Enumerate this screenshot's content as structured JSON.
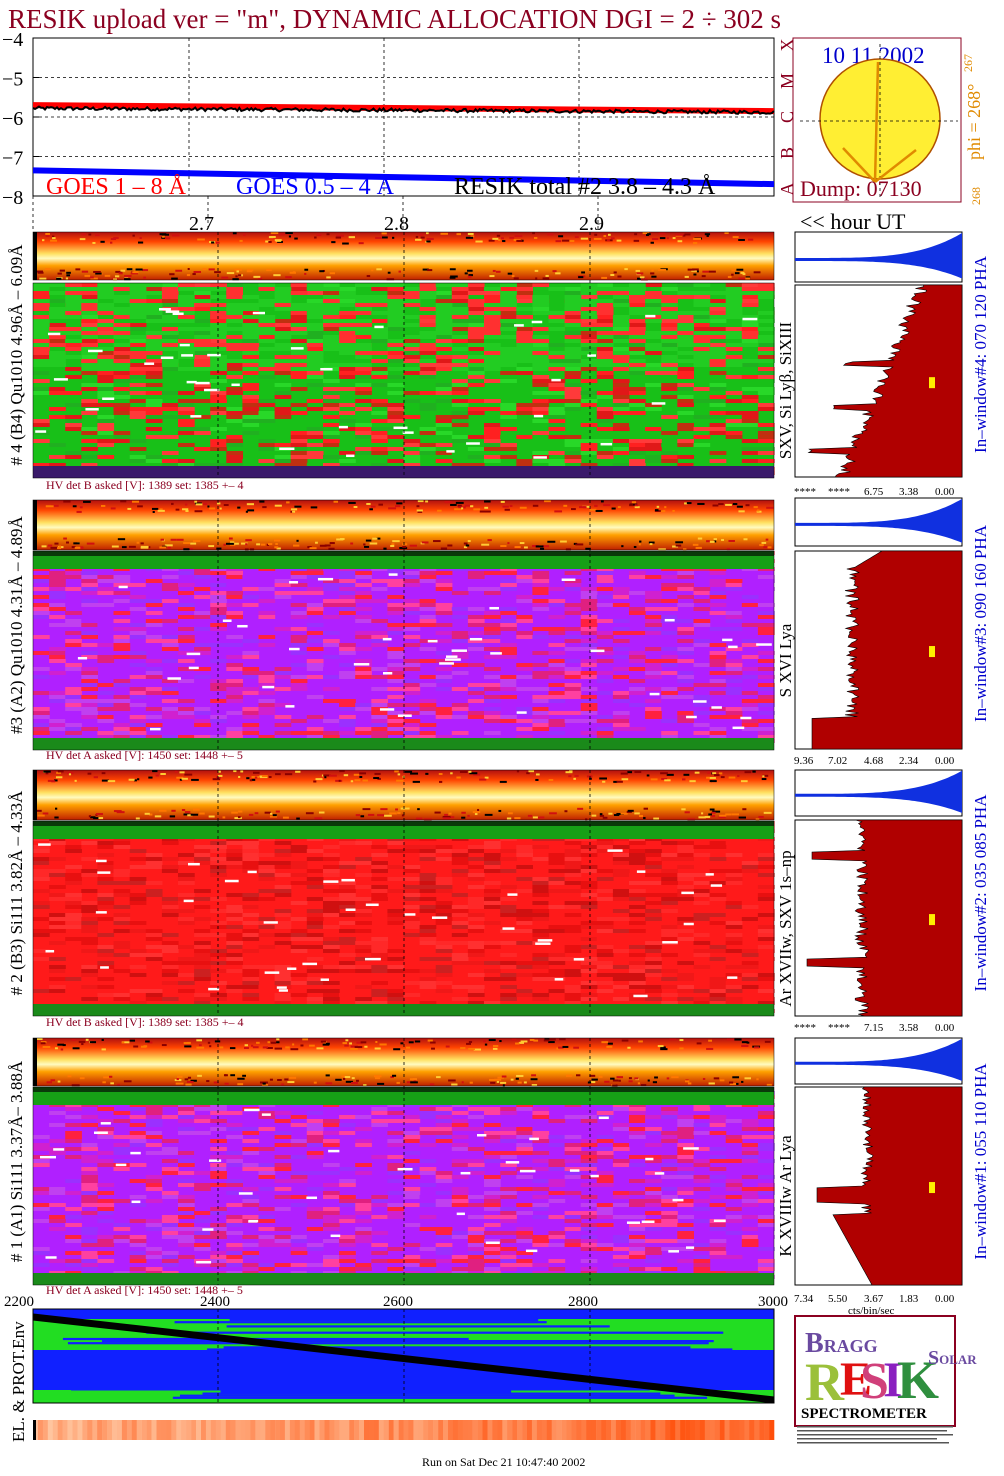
{
  "title": "RESIK upload ver = \"m\", DYNAMIC ALLOCATION  DGI =   2 ÷ 302 s",
  "goes": {
    "yticks": [
      "−4",
      "−5",
      "−6",
      "−7",
      "−8"
    ],
    "legend_goes_long": "GOES 1 – 8 Å",
    "legend_goes_short": "GOES 0.5 – 4 Å",
    "legend_resik": "RESIK total #2  3.8 – 4.3 Å",
    "xticks": [
      "2.7",
      "2.8",
      "2.9"
    ],
    "hour_label": "<< hour UT",
    "colors": {
      "goes_long": "#ff0000",
      "goes_short": "#0000ff",
      "resik": "#000000"
    }
  },
  "sun": {
    "date": "10 11 2002",
    "classes": [
      "X",
      "M",
      "C",
      "B",
      "A"
    ],
    "phi_label": "phi = 268°",
    "phi_sup": "267",
    "phi_bottom": "268",
    "dump": "Dump: 07130"
  },
  "panels": [
    {
      "id": "4",
      "left_label": "# 4 (B4) Qu1010 4.96Å – 6.09Å",
      "line_label": "SXV, Si Lyβ, SiXIII",
      "right_label": "In–window#4:  070 120 PHA",
      "hv": "HV det B asked [V]:  1389 set:  1385 +–   4",
      "xaxis": [
        "****",
        "****",
        "6.75",
        "3.38",
        "0.00"
      ],
      "theme": "green"
    },
    {
      "id": "3",
      "left_label": "#3 (A2) Qu1010  4.31Å – 4.89Å",
      "line_label": "S XVI Lya",
      "right_label": "In–window#3:  090 160 PHA",
      "hv": "HV det A asked [V]:  1450 set:  1448 +–    5",
      "xaxis": [
        "9.36",
        "7.02",
        "4.68",
        "2.34",
        "0.00"
      ],
      "theme": "purple"
    },
    {
      "id": "2",
      "left_label": "# 2 (B3) Si111  3.82Å – 4.33Å",
      "line_label": "Ar XVIIw,  SXV 1s–np",
      "right_label": "In–window#2:  035 085 PHA",
      "hv": "HV det B asked [V]:  1389 set:  1385 +–   4",
      "xaxis": [
        "****",
        "****",
        "7.15",
        "3.58",
        "0.00"
      ],
      "theme": "red"
    },
    {
      "id": "1",
      "left_label": "# 1 (A1) Si111  3.37Å–  3.88Å",
      "line_label": "K XVIIIw  Ar Lya",
      "right_label": "In–window#1:  055 110 PHA",
      "hv": "HV det A asked [V]:  1450 set:  1448 +–    5",
      "xaxis": [
        "7.34",
        "5.50",
        "3.67",
        "1.83",
        "0.00"
      ],
      "xunit": "cts/bin/sec",
      "theme": "purple"
    }
  ],
  "env": {
    "label": "EL. & PROT.Env",
    "xticks": [
      "2200",
      "2400",
      "2600",
      "2800",
      "3000"
    ]
  },
  "logo": {
    "bragg": "BRAGG",
    "resik": "RESIK",
    "solar": "SOLAR",
    "spectrometer": "SPECTROMETER"
  },
  "footer": "Run on Sat Dec 21 10:47:40 2002",
  "chart_data": [
    {
      "type": "line",
      "title": "RESIK upload ver = \"m\", DYNAMIC ALLOCATION  DGI =   2 ÷ 302 s",
      "xlabel": "hour UT",
      "xlim": [
        2.62,
        3.0
      ],
      "ylim": [
        -8,
        -4
      ],
      "series": [
        {
          "name": "GOES 1 – 8 Å",
          "x": [
            2.62,
            3.0
          ],
          "y": [
            -5.7,
            -5.85
          ]
        },
        {
          "name": "GOES 0.5 – 4 Å",
          "x": [
            2.62,
            3.0
          ],
          "y": [
            -7.35,
            -7.7
          ]
        },
        {
          "name": "RESIK total #2  3.8 – 4.3 Å",
          "x": [
            2.62,
            3.0
          ],
          "y": [
            -5.78,
            -5.88
          ]
        }
      ]
    },
    {
      "type": "line",
      "title": "EL. & PROT.Env",
      "xlim": [
        2200,
        3000
      ],
      "series": [
        {
          "x": [
            2200,
            3000
          ],
          "y": [
            1.0,
            0.08
          ]
        }
      ]
    }
  ]
}
